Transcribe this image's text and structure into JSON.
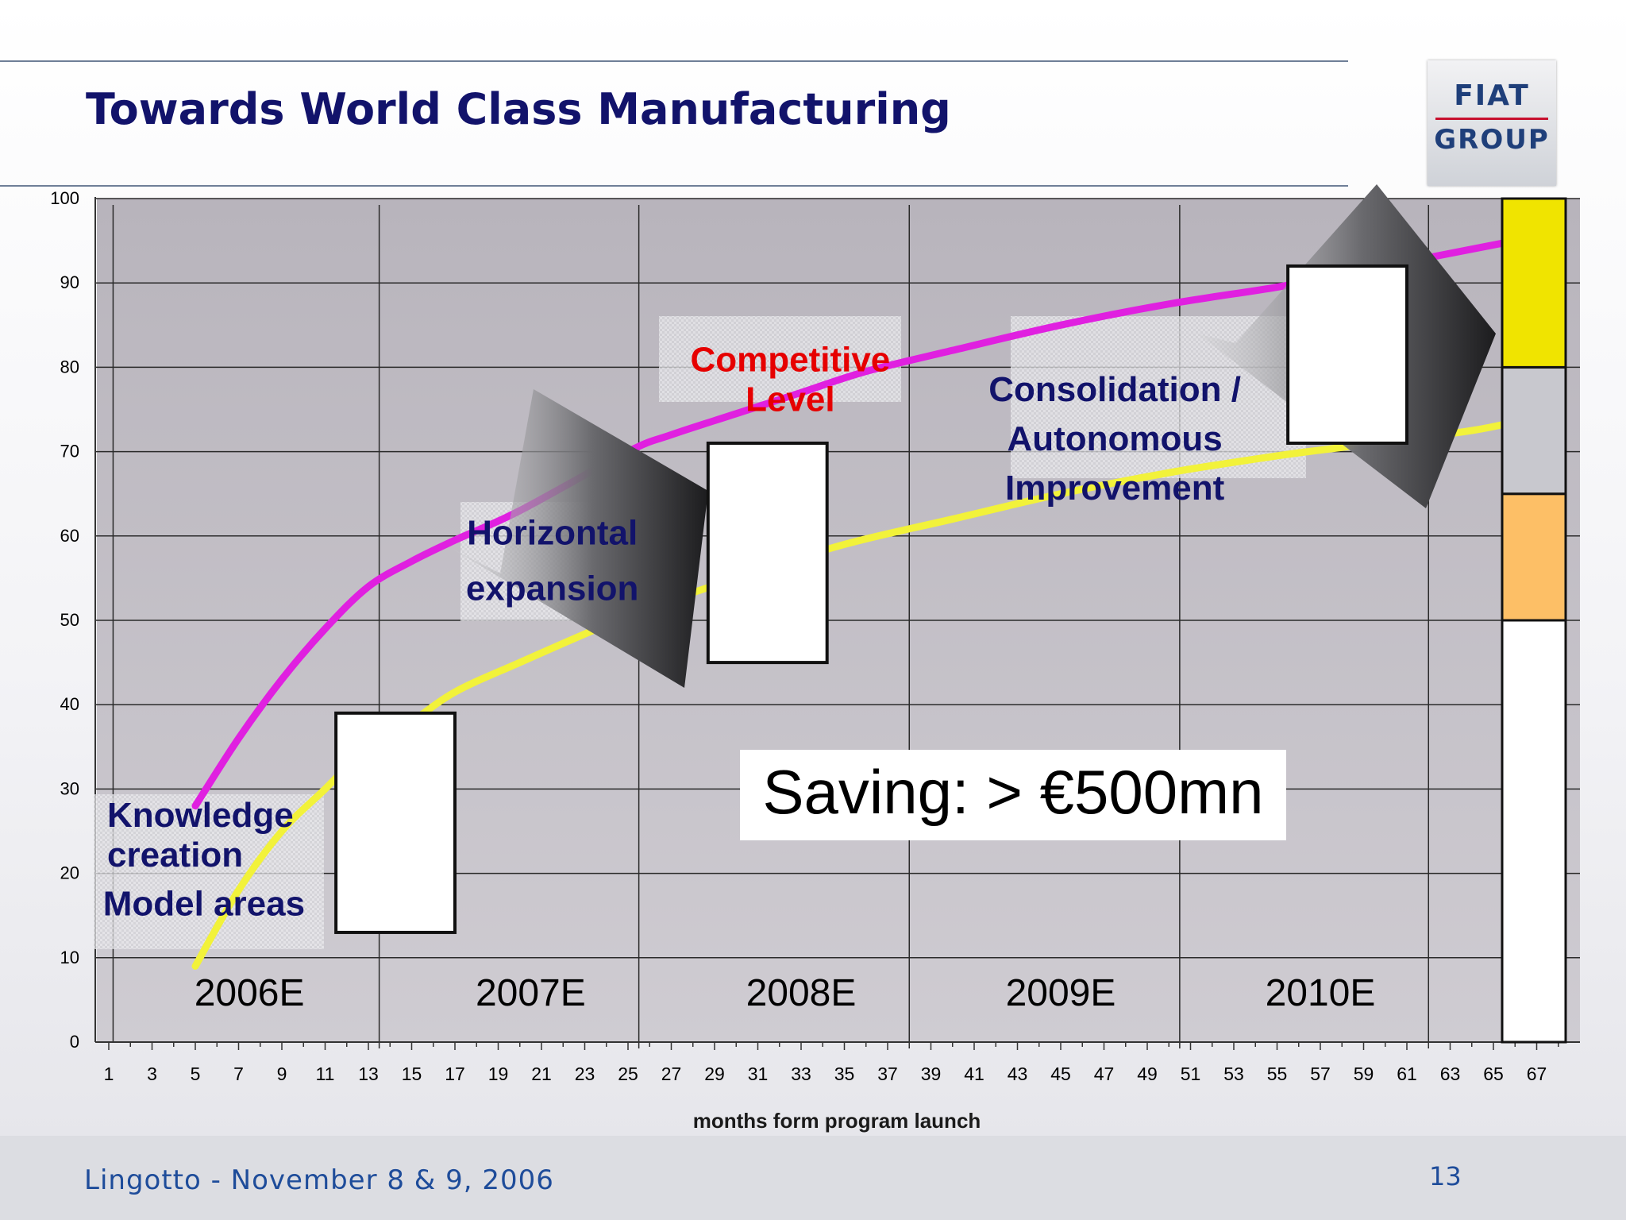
{
  "slide": {
    "title": "Towards World Class Manufacturing",
    "footer": "Lingotto - November 8 & 9, 2006",
    "page_number": "13",
    "logo_top": "FIAT",
    "logo_bottom": "GROUP"
  },
  "colors": {
    "title": "#12136b",
    "magenta_line": "#e020e0",
    "yellow_line": "#f2f23a",
    "bar_yellow": "#f0e400",
    "bar_orange": "#fdbf66",
    "bar_gray": "#c8c8ce",
    "bar_white": "#ffffff"
  },
  "chart_data": {
    "type": "line",
    "xlabel": "months form program launch",
    "ylabel": "",
    "xlim": [
      1,
      68
    ],
    "ylim": [
      0,
      100
    ],
    "grid": true,
    "x_ticks": [
      1,
      3,
      5,
      7,
      9,
      11,
      13,
      15,
      17,
      19,
      21,
      23,
      25,
      27,
      29,
      31,
      33,
      35,
      37,
      39,
      41,
      43,
      45,
      47,
      49,
      51,
      53,
      55,
      57,
      59,
      61,
      63,
      65,
      67
    ],
    "y_ticks": [
      0,
      10,
      20,
      30,
      40,
      50,
      60,
      70,
      80,
      90,
      100
    ],
    "year_dividers": [
      13.5,
      25.5,
      38,
      50.5,
      62
    ],
    "years": [
      {
        "label": "2006E",
        "x": 7.5
      },
      {
        "label": "2007E",
        "x": 20.5
      },
      {
        "label": "2008E",
        "x": 33
      },
      {
        "label": "2009E",
        "x": 45
      },
      {
        "label": "2010E",
        "x": 57
      }
    ],
    "series": [
      {
        "color": "#e020e0",
        "x": [
          5,
          7,
          9,
          11,
          13,
          15,
          17,
          20,
          25,
          27,
          30,
          33,
          36,
          40,
          45,
          50,
          55,
          58,
          61,
          64,
          66,
          68
        ],
        "y": [
          28,
          36,
          43,
          49,
          54,
          57,
          59.5,
          63,
          70,
          72,
          74.5,
          77,
          79.5,
          82,
          85,
          87.5,
          89.5,
          91,
          92.5,
          94,
          95,
          96
        ]
      },
      {
        "color": "#f2f23a",
        "x": [
          5,
          7,
          9,
          11,
          13,
          15,
          17,
          20,
          25,
          30,
          35,
          40,
          45,
          50,
          55,
          58,
          61,
          64,
          66,
          68
        ],
        "y": [
          9,
          18,
          25,
          30,
          35,
          38,
          41.5,
          45,
          50.5,
          55,
          59,
          62,
          65,
          67.5,
          69.5,
          70.5,
          71.5,
          72.5,
          73.5,
          74.5
        ]
      }
    ],
    "floating_bars": [
      {
        "x_from": 11.5,
        "x_to": 17.0,
        "y_from": 13,
        "y_to": 39
      },
      {
        "x_from": 28.7,
        "x_to": 34.2,
        "y_from": 45,
        "y_to": 71
      },
      {
        "x_from": 55.5,
        "x_to": 61.0,
        "y_from": 71,
        "y_to": 92
      }
    ],
    "stacked_bar": {
      "x_from": 65.0,
      "x_to": 68.0,
      "segments": [
        {
          "from": 0,
          "to": 50,
          "color": "#ffffff"
        },
        {
          "from": 50,
          "to": 65,
          "color": "#fdbf66"
        },
        {
          "from": 65,
          "to": 80,
          "color": "#c8c8ce"
        },
        {
          "from": 80,
          "to": 100,
          "color": "#f0e400"
        }
      ]
    },
    "annotations": [
      {
        "lines": [
          "Knowledge",
          "creation"
        ],
        "x": 2.7,
        "y": 25.5,
        "color": "#12136b",
        "align": "left"
      },
      {
        "lines": [
          "Model areas"
        ],
        "x": 5.4,
        "y": 15,
        "color": "#12136b",
        "align": "center"
      },
      {
        "lines": [
          "Horizontal",
          "expansion"
        ],
        "x": 21.5,
        "y": 59,
        "color": "#12136b",
        "align": "center"
      },
      {
        "lines": [
          "Competitive",
          "Level"
        ],
        "x": 32.5,
        "y": 79.5,
        "color": "#e60000",
        "align": "center"
      },
      {
        "lines": [
          "Consolidation /",
          "Autonomous",
          "Improvement"
        ],
        "x": 47.5,
        "y": 76,
        "color": "#12136b",
        "align": "center"
      }
    ],
    "callout": "Saving: > €500mn"
  }
}
